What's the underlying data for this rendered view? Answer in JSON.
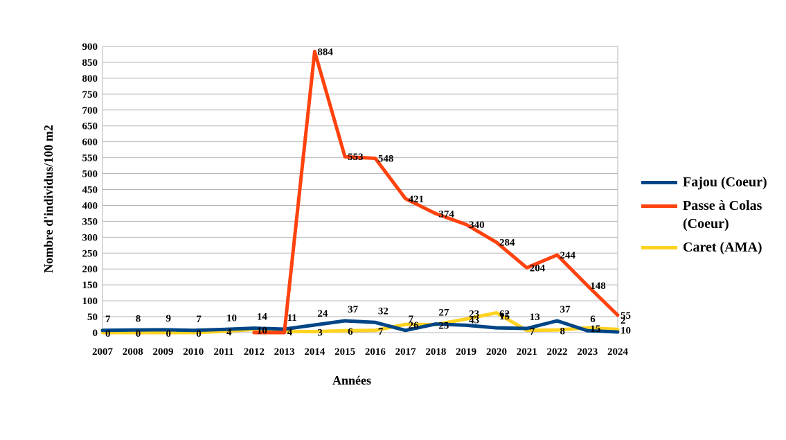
{
  "chart_data": {
    "type": "line",
    "xlabel": "Années",
    "ylabel": "Nombre d'individus/100 m2",
    "ylim": [
      0,
      900
    ],
    "yticks": [
      0,
      50,
      100,
      150,
      200,
      250,
      300,
      350,
      400,
      450,
      500,
      550,
      600,
      650,
      700,
      750,
      800,
      850,
      900
    ],
    "grid": true,
    "legend_position": "right",
    "categories": [
      "2007",
      "2008",
      "2009",
      "2010",
      "2011",
      "2012",
      "2013",
      "2014",
      "2015",
      "2016",
      "2017",
      "2018",
      "2019",
      "2020",
      "2021",
      "2022",
      "2023",
      "2024"
    ],
    "series": [
      {
        "name": "Fajou (Coeur)",
        "color": "#004586",
        "values": [
          7,
          8,
          9,
          7,
          10,
          14,
          11,
          24,
          37,
          32,
          7,
          27,
          23,
          15,
          13,
          37,
          6,
          2
        ]
      },
      {
        "name": "Passe à Colas (Coeur)",
        "color": "#ff420e",
        "values": [
          null,
          null,
          null,
          null,
          null,
          0,
          0,
          884,
          553,
          548,
          421,
          374,
          340,
          284,
          204,
          244,
          148,
          55
        ]
      },
      {
        "name": "Caret (AMA)",
        "color": "#ffd320",
        "values": [
          0,
          0,
          0,
          0,
          4,
          10,
          4,
          3,
          6,
          7,
          26,
          25,
          43,
          62,
          7,
          8,
          15,
          10
        ]
      }
    ]
  },
  "legend": {
    "items": [
      {
        "label": "Fajou (Coeur)",
        "color": "#004586"
      },
      {
        "label": "Passe à Colas (Coeur)",
        "color": "#ff420e"
      },
      {
        "label": "Caret (AMA)",
        "color": "#ffd320"
      }
    ]
  }
}
